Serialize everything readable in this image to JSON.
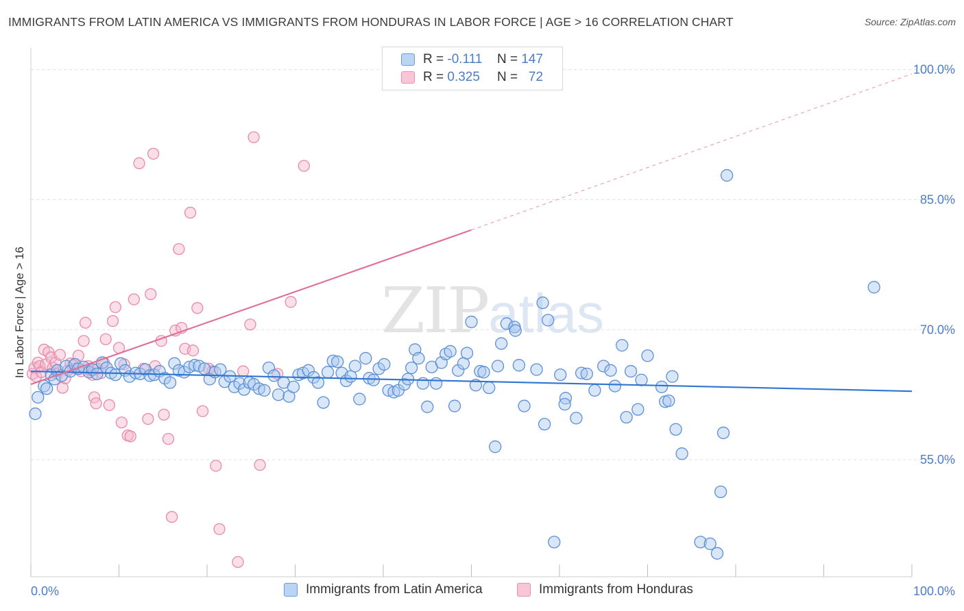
{
  "header": {
    "title": "IMMIGRANTS FROM LATIN AMERICA VS IMMIGRANTS FROM HONDURAS IN LABOR FORCE | AGE > 16 CORRELATION CHART",
    "source": "Source: ZipAtlas.com"
  },
  "watermark": {
    "zip": "ZIP",
    "atlas": "atlas"
  },
  "legend": {
    "rows": [
      {
        "r_label": "R =",
        "r_value": "-0.111",
        "n_label": "N =",
        "n_value": "147"
      },
      {
        "r_label": "R =",
        "r_value": "0.325",
        "n_label": "N =",
        "n_value": "72"
      }
    ]
  },
  "bottom_legend": {
    "series1": "Immigrants from Latin America",
    "series2": "Immigrants from Honduras"
  },
  "colors": {
    "blue_fill": "#a9c8f0",
    "blue_stroke": "#5b8fd6",
    "blue_line": "#2e74d0",
    "pink_fill": "#f5b6cc",
    "pink_stroke": "#e88aa9",
    "pink_line": "#e0709a",
    "axis_label": "#4a7cc7",
    "grid": "#dedede"
  },
  "chart_data": {
    "type": "scatter",
    "title": "IMMIGRANTS FROM LATIN AMERICA VS IMMIGRANTS FROM HONDURAS IN LABOR FORCE | AGE > 16 CORRELATION CHART",
    "xlabel": "",
    "ylabel": "In Labor Force | Age > 16",
    "xlim": [
      0,
      100
    ],
    "ylim": [
      41.5,
      102.5
    ],
    "x_tick_labels": [
      "0.0%",
      "100.0%"
    ],
    "y_ticks": [
      55,
      70,
      85,
      100
    ],
    "y_tick_labels": [
      "55.0%",
      "70.0%",
      "85.0%",
      "100.0%"
    ],
    "grid": true,
    "series": [
      {
        "name": "Immigrants from Latin America",
        "R": -0.111,
        "N": 147,
        "trend": {
          "x": [
            0,
            100
          ],
          "y": [
            65.2,
            62.9
          ],
          "style": "solid"
        },
        "points": [
          [
            0.5,
            60.3
          ],
          [
            0.8,
            62.2
          ],
          [
            1.5,
            63.5
          ],
          [
            1.8,
            63.2
          ],
          [
            2.3,
            64.8
          ],
          [
            2.7,
            64.3
          ],
          [
            3.0,
            65.3
          ],
          [
            3.5,
            64.7
          ],
          [
            4.0,
            65.8
          ],
          [
            4.5,
            65.2
          ],
          [
            5.0,
            66.0
          ],
          [
            5.4,
            65.5
          ],
          [
            6.0,
            65.7
          ],
          [
            6.6,
            65.1
          ],
          [
            7.0,
            65.4
          ],
          [
            7.5,
            64.9
          ],
          [
            8.1,
            66.2
          ],
          [
            8.6,
            65.6
          ],
          [
            9.1,
            65.0
          ],
          [
            9.6,
            64.8
          ],
          [
            10.2,
            66.1
          ],
          [
            10.7,
            65.3
          ],
          [
            11.2,
            64.6
          ],
          [
            11.9,
            65.0
          ],
          [
            12.4,
            64.9
          ],
          [
            13.0,
            65.4
          ],
          [
            13.5,
            64.7
          ],
          [
            14.0,
            64.8
          ],
          [
            14.6,
            65.2
          ],
          [
            15.2,
            64.4
          ],
          [
            15.8,
            63.9
          ],
          [
            16.3,
            66.1
          ],
          [
            16.8,
            65.3
          ],
          [
            17.4,
            65.1
          ],
          [
            18.0,
            65.7
          ],
          [
            18.6,
            65.9
          ],
          [
            19.1,
            65.8
          ],
          [
            19.7,
            65.5
          ],
          [
            20.3,
            64.3
          ],
          [
            20.9,
            65.1
          ],
          [
            21.5,
            65.4
          ],
          [
            22.0,
            64.0
          ],
          [
            22.6,
            64.6
          ],
          [
            23.1,
            63.4
          ],
          [
            23.7,
            63.8
          ],
          [
            24.2,
            63.1
          ],
          [
            24.8,
            63.9
          ],
          [
            25.3,
            63.7
          ],
          [
            25.9,
            63.2
          ],
          [
            26.5,
            63.0
          ],
          [
            27.0,
            65.6
          ],
          [
            27.6,
            64.7
          ],
          [
            28.1,
            62.5
          ],
          [
            28.7,
            63.9
          ],
          [
            29.3,
            62.3
          ],
          [
            29.8,
            63.4
          ],
          [
            30.4,
            64.8
          ],
          [
            30.9,
            65.0
          ],
          [
            31.5,
            65.3
          ],
          [
            32.1,
            64.5
          ],
          [
            32.6,
            63.9
          ],
          [
            33.2,
            61.6
          ],
          [
            33.7,
            65.1
          ],
          [
            34.3,
            66.4
          ],
          [
            34.8,
            66.3
          ],
          [
            35.3,
            65.0
          ],
          [
            35.8,
            64.1
          ],
          [
            36.3,
            64.6
          ],
          [
            36.8,
            65.8
          ],
          [
            37.3,
            62.0
          ],
          [
            38.0,
            66.7
          ],
          [
            38.4,
            64.4
          ],
          [
            38.9,
            64.2
          ],
          [
            39.5,
            65.5
          ],
          [
            40.1,
            66.0
          ],
          [
            40.6,
            63.0
          ],
          [
            41.2,
            62.8
          ],
          [
            41.7,
            63.0
          ],
          [
            42.4,
            63.7
          ],
          [
            42.8,
            64.3
          ],
          [
            43.2,
            65.6
          ],
          [
            43.6,
            67.7
          ],
          [
            44.0,
            66.7
          ],
          [
            44.5,
            63.8
          ],
          [
            45.0,
            61.1
          ],
          [
            45.5,
            65.7
          ],
          [
            46.0,
            63.8
          ],
          [
            46.6,
            66.2
          ],
          [
            47.1,
            67.2
          ],
          [
            47.6,
            67.5
          ],
          [
            48.1,
            61.2
          ],
          [
            48.5,
            65.3
          ],
          [
            49.1,
            66.1
          ],
          [
            49.5,
            67.3
          ],
          [
            50.0,
            70.9
          ],
          [
            50.5,
            63.6
          ],
          [
            51.0,
            65.2
          ],
          [
            51.4,
            65.1
          ],
          [
            52.0,
            63.3
          ],
          [
            53.0,
            65.8
          ],
          [
            54.0,
            70.7
          ],
          [
            54.9,
            70.3
          ],
          [
            53.4,
            68.4
          ],
          [
            52.7,
            56.5
          ],
          [
            55.0,
            69.9
          ],
          [
            55.4,
            65.9
          ],
          [
            56.0,
            61.2
          ],
          [
            57.4,
            65.4
          ],
          [
            58.1,
            73.1
          ],
          [
            58.7,
            71.1
          ],
          [
            58.3,
            59.1
          ],
          [
            59.4,
            45.5
          ],
          [
            60.1,
            64.8
          ],
          [
            60.7,
            62.1
          ],
          [
            60.6,
            61.4
          ],
          [
            61.9,
            59.8
          ],
          [
            62.5,
            65.0
          ],
          [
            63.1,
            64.9
          ],
          [
            64.0,
            63.0
          ],
          [
            65.0,
            65.8
          ],
          [
            65.8,
            65.3
          ],
          [
            66.3,
            63.5
          ],
          [
            67.1,
            68.2
          ],
          [
            67.6,
            59.9
          ],
          [
            68.1,
            65.2
          ],
          [
            68.9,
            60.8
          ],
          [
            69.3,
            64.2
          ],
          [
            70.0,
            67.0
          ],
          [
            71.6,
            63.4
          ],
          [
            72.0,
            61.7
          ],
          [
            72.4,
            61.8
          ],
          [
            72.8,
            64.6
          ],
          [
            73.2,
            58.5
          ],
          [
            73.9,
            55.7
          ],
          [
            76.0,
            45.5
          ],
          [
            77.1,
            45.3
          ],
          [
            77.9,
            44.2
          ],
          [
            78.3,
            51.3
          ],
          [
            78.6,
            58.1
          ],
          [
            79.0,
            87.8
          ],
          [
            95.7,
            74.9
          ]
        ]
      },
      {
        "name": "Immigrants from Honduras",
        "R": 0.325,
        "N": 72,
        "trend": {
          "x": [
            0,
            50
          ],
          "y": [
            63.7,
            81.5
          ],
          "style": "solid",
          "extension": {
            "x": [
              50,
              100
            ],
            "y": [
              81.5,
              99.5
            ],
            "style": "dashed"
          }
        },
        "points": [
          [
            0.2,
            64.9
          ],
          [
            0.4,
            65.6
          ],
          [
            0.6,
            64.6
          ],
          [
            0.8,
            66.2
          ],
          [
            1.0,
            65.8
          ],
          [
            1.2,
            65.1
          ],
          [
            1.5,
            67.7
          ],
          [
            1.7,
            66.0
          ],
          [
            2.0,
            67.4
          ],
          [
            2.3,
            66.8
          ],
          [
            2.5,
            65.6
          ],
          [
            2.8,
            66.2
          ],
          [
            3.0,
            64.9
          ],
          [
            3.3,
            67.1
          ],
          [
            3.6,
            63.3
          ],
          [
            3.9,
            64.4
          ],
          [
            4.2,
            65.3
          ],
          [
            4.5,
            66.1
          ],
          [
            4.8,
            65.9
          ],
          [
            5.1,
            65.5
          ],
          [
            5.4,
            67.0
          ],
          [
            5.7,
            65.2
          ],
          [
            6.0,
            68.7
          ],
          [
            6.2,
            70.8
          ],
          [
            6.5,
            65.8
          ],
          [
            6.7,
            65.3
          ],
          [
            7.0,
            64.8
          ],
          [
            7.2,
            62.2
          ],
          [
            7.4,
            61.5
          ],
          [
            7.6,
            65.5
          ],
          [
            8.0,
            65.0
          ],
          [
            8.3,
            66.2
          ],
          [
            8.5,
            68.9
          ],
          [
            8.9,
            61.3
          ],
          [
            9.3,
            71.0
          ],
          [
            9.6,
            72.6
          ],
          [
            10.0,
            67.9
          ],
          [
            10.3,
            59.3
          ],
          [
            10.6,
            66.0
          ],
          [
            11.0,
            57.8
          ],
          [
            11.3,
            57.7
          ],
          [
            11.7,
            73.5
          ],
          [
            12.3,
            89.2
          ],
          [
            12.8,
            65.5
          ],
          [
            13.3,
            59.7
          ],
          [
            13.6,
            74.1
          ],
          [
            13.9,
            90.3
          ],
          [
            14.1,
            65.8
          ],
          [
            14.8,
            68.7
          ],
          [
            15.1,
            60.2
          ],
          [
            15.6,
            57.4
          ],
          [
            16.0,
            48.4
          ],
          [
            16.4,
            69.9
          ],
          [
            16.8,
            79.3
          ],
          [
            17.1,
            70.2
          ],
          [
            17.5,
            67.8
          ],
          [
            18.1,
            83.5
          ],
          [
            18.4,
            67.6
          ],
          [
            18.9,
            72.5
          ],
          [
            19.5,
            60.6
          ],
          [
            20.2,
            65.5
          ],
          [
            20.6,
            65.2
          ],
          [
            21.0,
            54.3
          ],
          [
            21.4,
            47.0
          ],
          [
            23.5,
            43.2
          ],
          [
            24.1,
            65.2
          ],
          [
            24.9,
            70.6
          ],
          [
            25.3,
            92.2
          ],
          [
            26.0,
            54.4
          ],
          [
            28.0,
            64.9
          ],
          [
            29.5,
            73.2
          ],
          [
            31.0,
            88.9
          ]
        ]
      }
    ]
  }
}
